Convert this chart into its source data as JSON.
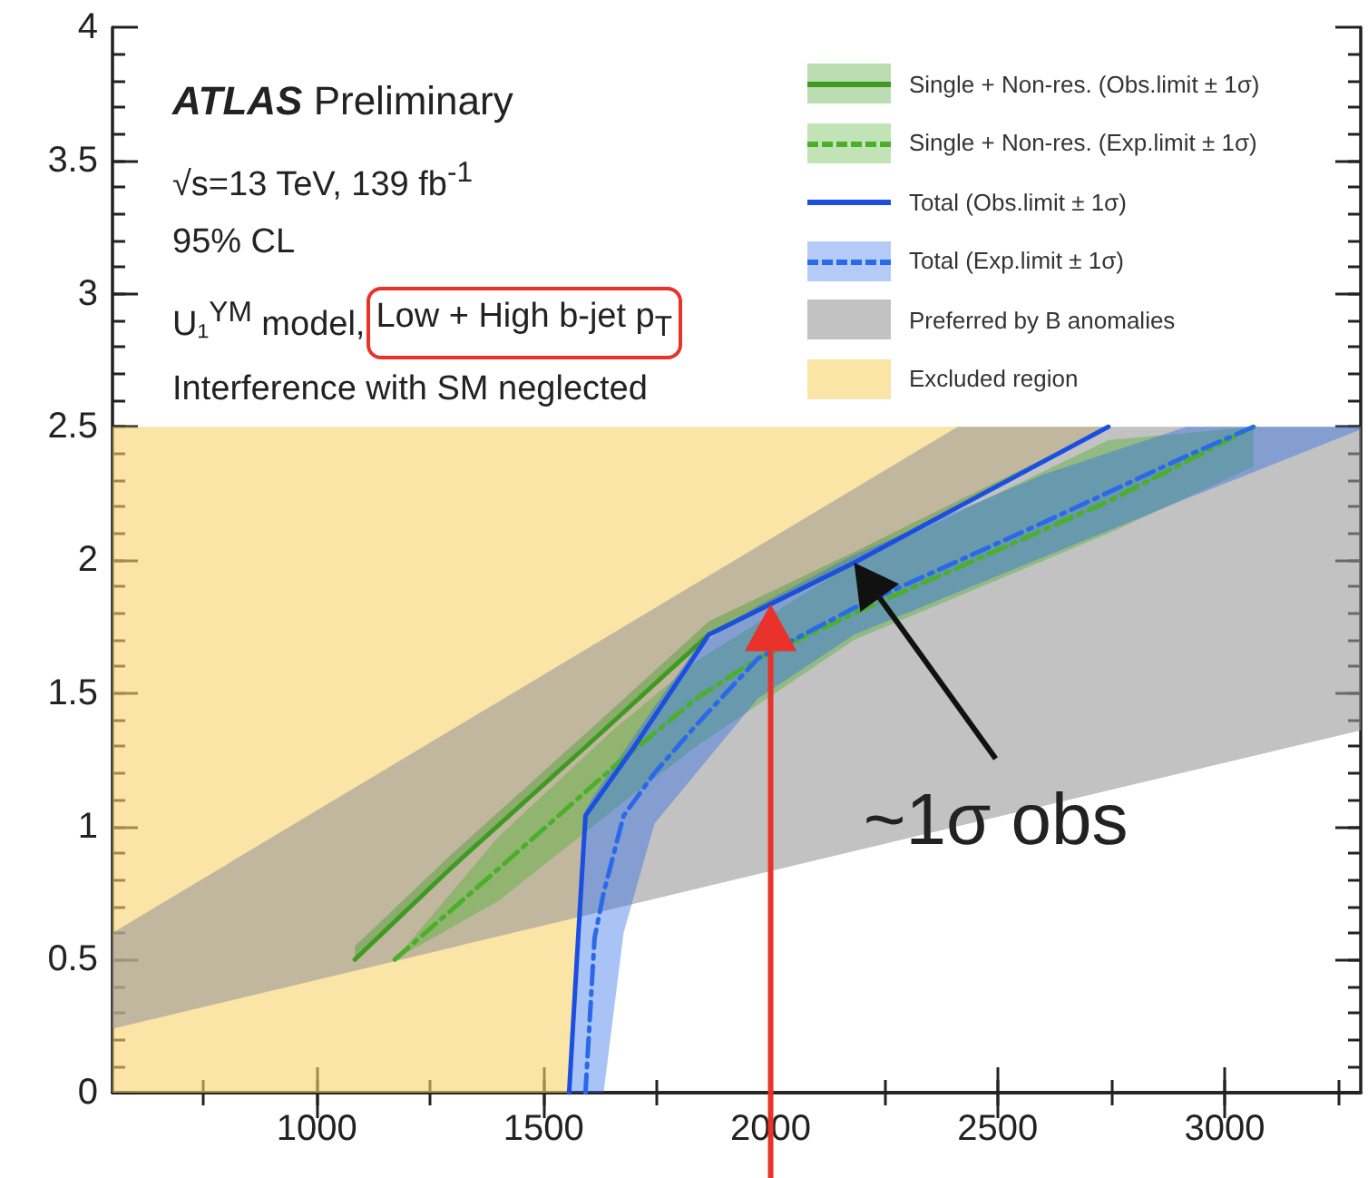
{
  "chart_data": {
    "type": "line",
    "title": "ATLAS Preliminary",
    "annotations": [
      "√s=13 TeV, 139 fb$^{-1}$",
      "95% CL",
      "U₁$^{YM}$ model,",
      "Low + High b-jet p$_{T}$",
      "Interference with SM neglected",
      {
        "text": "~1σ obs",
        "x": 2184,
        "y": 1.99
      }
    ],
    "series": [
      {
        "name": "Single + Non-res. (Obs.limit ± 1σ)",
        "line_style": "solid",
        "color": "#3f9a22",
        "x": [
          1084,
          1300,
          1600,
          1864,
          2184,
          2744
        ],
        "values": [
          0.5,
          0.85,
          1.31,
          1.72,
          1.99,
          null
        ],
        "lower": [
          0.5,
          0.85,
          1.31,
          1.72,
          1.99,
          2.5
        ],
        "upper": [
          0.55,
          0.9,
          1.36,
          1.77,
          2.03,
          2.5
        ]
      },
      {
        "name": "Single + Non-res. (Exp.limit ± 1σ)",
        "line_style": "dashed",
        "color": "#4caf2a",
        "x": [
          1172,
          1400,
          1652,
          1836,
          1972,
          2184,
          2744,
          3064
        ],
        "values": [
          0.5,
          0.84,
          1.22,
          1.48,
          1.63,
          1.8,
          2.22,
          2.5
        ],
        "lower": [
          0.5,
          0.72,
          1.06,
          1.3,
          null,
          1.7,
          2.1,
          2.35
        ],
        "upper": [
          0.5,
          0.96,
          1.36,
          1.62,
          null,
          1.99,
          2.45,
          2.5
        ]
      },
      {
        "name": "Total (Obs.limit ± 1σ)",
        "line_style": "solid",
        "color": "#1a4fe0",
        "x": [
          1556,
          1572,
          1592,
          1700,
          1864,
          2184,
          2744
        ],
        "values": [
          0,
          0.47,
          1.04,
          1.3,
          1.72,
          1.99,
          2.5
        ]
      },
      {
        "name": "Total (Exp.limit ± 1σ)",
        "line_style": "dashed",
        "color": "#2a6ae8",
        "x": [
          1560,
          1592,
          1612,
          1632,
          1676,
          1744,
          1836,
          1972,
          2184,
          2600,
          2916,
          3064,
          3300
        ],
        "values": [
          null,
          0,
          0.58,
          0.75,
          1.04,
          1.2,
          1.38,
          1.63,
          1.82,
          2.14,
          2.39,
          2.5,
          null
        ],
        "lower": [
          0,
          0,
          0,
          0,
          0.6,
          1.01,
          1.2,
          1.48,
          1.72,
          2.01,
          2.23,
          2.33,
          2.49
        ],
        "upper": [
          0.05,
          1.06,
          1.12,
          1.17,
          1.28,
          1.45,
          1.67,
          1.83,
          2.02,
          2.32,
          2.5,
          2.5,
          2.5
        ]
      },
      {
        "name": "Preferred by B anomalies",
        "color": "#9a9a9a",
        "x": [
          550,
          2412,
          3300
        ],
        "values": [
          null,
          null,
          null
        ],
        "lower": [
          0.24,
          1.0,
          1.36
        ],
        "upper": [
          0.6,
          2.5,
          2.5
        ]
      },
      {
        "name": "Excluded region",
        "color": "#f7d26a",
        "x": [
          550,
          1556,
          1572,
          1592,
          1700,
          1864,
          2184,
          2744
        ],
        "values": [
          null,
          null,
          null,
          null,
          null,
          null,
          null,
          null
        ],
        "lower": [
          0,
          0,
          0.47,
          1.04,
          1.3,
          1.72,
          1.99,
          2.5
        ],
        "upper": [
          2.5,
          2.5,
          2.5,
          2.5,
          2.5,
          2.5,
          2.5,
          2.5
        ]
      }
    ],
    "ref_lines": [
      {
        "axis": "x",
        "value": 2000,
        "color": "#e8322a"
      }
    ],
    "xlim": [
      550,
      3300
    ],
    "xticks": [
      1000,
      1500,
      2000,
      2500,
      3000
    ],
    "ylim": [
      0,
      4
    ],
    "yticks": [
      0,
      0.5,
      1,
      1.5,
      2,
      2.5,
      3,
      3.5,
      4
    ],
    "grid": false,
    "legend": "top right",
    "marker": "none"
  }
}
